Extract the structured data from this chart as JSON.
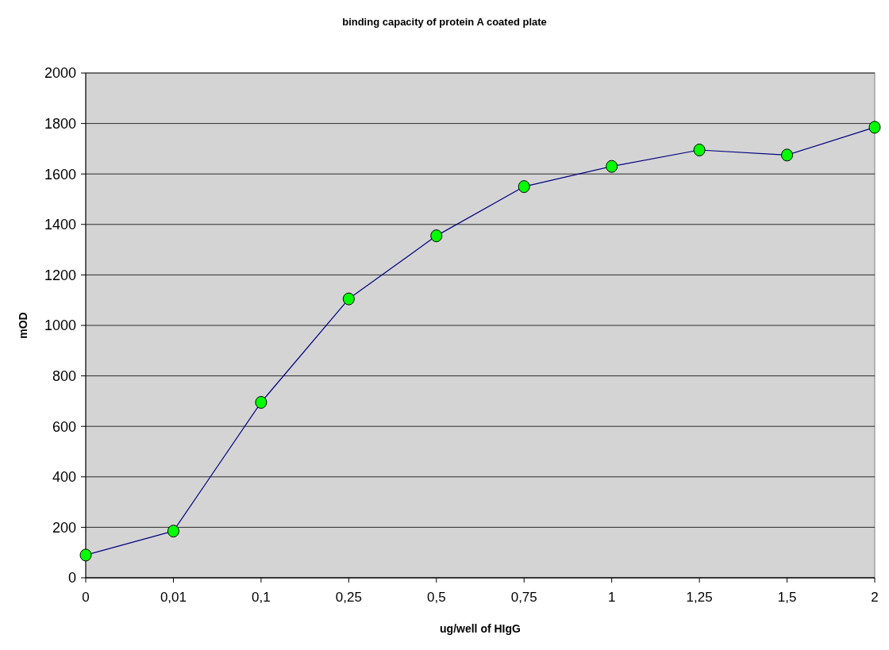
{
  "chart_data": {
    "type": "line",
    "title": "binding capacity of protein A coated plate",
    "xlabel": "ug/well of HIgG",
    "ylabel": "mOD",
    "categories": [
      "0",
      "0,01",
      "0,1",
      "0,25",
      "0,5",
      "0,75",
      "1",
      "1,25",
      "1,5",
      "2"
    ],
    "series": [
      {
        "color": "#000080",
        "values": [
          90,
          185,
          695,
          1105,
          1355,
          1550,
          1630,
          1695,
          1675,
          1785
        ]
      }
    ],
    "ylim": [
      0,
      2000
    ],
    "yticks": [
      0,
      200,
      400,
      600,
      800,
      1000,
      1200,
      1400,
      1600,
      1800,
      2000
    ],
    "grid": "y",
    "marker": "circle",
    "line_style": "solid"
  }
}
